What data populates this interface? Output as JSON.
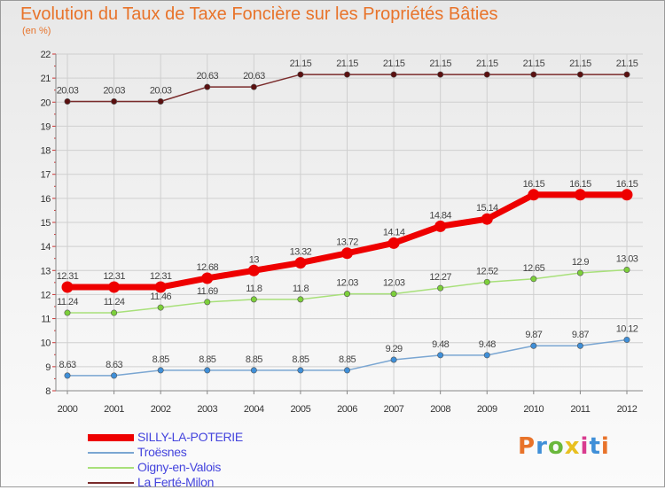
{
  "title": "Evolution du Taux de Taxe Foncière sur les Propriétés Bâties",
  "unit_label": "(en %)",
  "brand": {
    "text": "Proxiti",
    "letter_colors": [
      "#e8732a",
      "#3f8fd8",
      "#6ab83c",
      "#e8c020",
      "#d83b8f",
      "#3f8fd8",
      "#e8732a"
    ]
  },
  "chart_data": {
    "type": "line",
    "title": "Evolution du Taux de Taxe Foncière sur les Propriétés Bâties",
    "ylabel": "(en %)",
    "xlabel": "",
    "x": [
      "2000",
      "2001",
      "2002",
      "2003",
      "2004",
      "2005",
      "2006",
      "2007",
      "2008",
      "2009",
      "2010",
      "2011",
      "2012"
    ],
    "ylim": [
      8,
      22
    ],
    "yticks": [
      "8",
      "9",
      "10",
      "11",
      "12",
      "13",
      "14",
      "15",
      "16",
      "17",
      "18",
      "19",
      "20",
      "21",
      "22"
    ],
    "grid": true,
    "legend_position": "bottom-left",
    "series": [
      {
        "name": "SILLY-LA-POTERIE",
        "color": "#ee0000",
        "marker_color": "#ee0000",
        "emphasis": true,
        "values": [
          12.31,
          12.31,
          12.31,
          12.68,
          13,
          13.32,
          13.72,
          14.14,
          14.84,
          15.14,
          16.15,
          16.15,
          16.15
        ],
        "labels": [
          "12.31",
          "12.31",
          "12.31",
          "12.68",
          "13",
          "13.32",
          "13.72",
          "14.14",
          "14.84",
          "15.14",
          "16.15",
          "16.15",
          "16.15"
        ]
      },
      {
        "name": "Troësnes",
        "color": "#7aa6d2",
        "marker_color": "#3f8fd8",
        "emphasis": false,
        "values": [
          8.63,
          8.63,
          8.85,
          8.85,
          8.85,
          8.85,
          8.85,
          9.29,
          9.48,
          9.48,
          9.87,
          9.87,
          10.12
        ],
        "labels": [
          "8.63",
          "8.63",
          "8.85",
          "8.85",
          "8.85",
          "8.85",
          "8.85",
          "9.29",
          "9.48",
          "9.48",
          "9.87",
          "9.87",
          "10.12"
        ]
      },
      {
        "name": "Oigny-en-Valois",
        "color": "#a8e07a",
        "marker_color": "#7ccf3a",
        "emphasis": false,
        "values": [
          11.24,
          11.24,
          11.46,
          11.69,
          11.8,
          11.8,
          12.03,
          12.03,
          12.27,
          12.52,
          12.65,
          12.9,
          13.03
        ],
        "labels": [
          "11.24",
          "11.24",
          "11.46",
          "11.69",
          "11.8",
          "11.8",
          "12.03",
          "12.03",
          "12.27",
          "12.52",
          "12.65",
          "12.9",
          "13.03"
        ]
      },
      {
        "name": "La Ferté-Milon",
        "color": "#7a2b2b",
        "marker_color": "#5a1010",
        "emphasis": false,
        "values": [
          20.03,
          20.03,
          20.03,
          20.63,
          20.63,
          21.15,
          21.15,
          21.15,
          21.15,
          21.15,
          21.15,
          21.15,
          21.15
        ],
        "labels": [
          "20.03",
          "20.03",
          "20.03",
          "20.63",
          "20.63",
          "21.15",
          "21.15",
          "21.15",
          "21.15",
          "21.15",
          "21.15",
          "21.15",
          "21.15"
        ]
      }
    ]
  }
}
